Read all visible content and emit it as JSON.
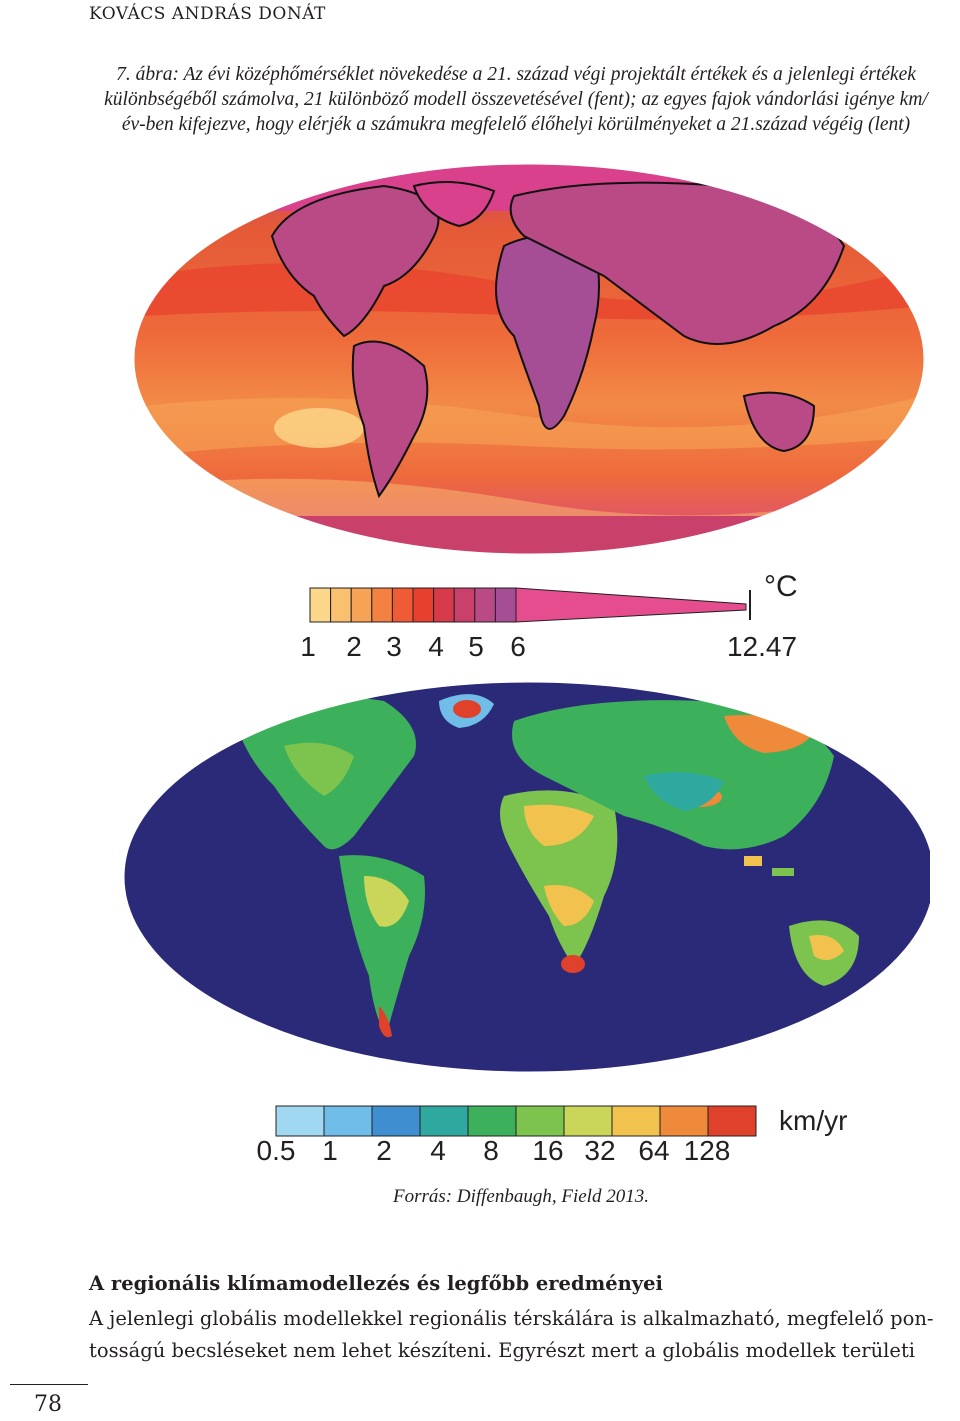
{
  "header": {
    "author": "KOVÁCS ANDRÁS DONÁT"
  },
  "figure": {
    "caption_lines": [
      "7. ábra: Az évi középhőmérséklet növekedése a 21. század végi projektált értékek és a jelenlegi értékek",
      "különbségéből számolva, 21 különböző modell összevetésével (fent); az egyes fajok vándorlási igénye km/",
      "év-ben kifejezve, hogy elérjék a számukra megfelelő élőhelyi körülményeket a 21.század végéig (lent)"
    ],
    "top_map": {
      "unit": "°C",
      "scale_labels": [
        "1",
        "2",
        "3",
        "4",
        "5",
        "6"
      ],
      "max_label": "12.47",
      "colors": [
        "#fbd78a",
        "#f9c070",
        "#f6a355",
        "#f38142",
        "#ef5b35",
        "#e8402e",
        "#d63a4b",
        "#c9406a",
        "#b94a86",
        "#a64e95"
      ],
      "tail_color": "#e54d8e"
    },
    "bottom_map": {
      "unit": "km/yr",
      "scale_labels": [
        "0.5",
        "1",
        "2",
        "4",
        "8",
        "16",
        "32",
        "64",
        "128"
      ],
      "colors": [
        "#9fd8f0",
        "#6fbde8",
        "#3f8fd0",
        "#2fa8a0",
        "#3cb05a",
        "#7cc44e",
        "#c9d65a",
        "#f1c34e",
        "#ee8a3a",
        "#e0412a"
      ],
      "ocean_color": "#2b2a78"
    },
    "source": "Forrás: Diffenbaugh, Field 2013."
  },
  "section": {
    "heading": "A regionális klímamodellezés és legfőbb eredményei",
    "body_lines": [
      "A jelenlegi globális modellekkel regionális térskálára is alkalmazható, megfelelő pon-",
      "tosságú becsléseket nem lehet készíteni. Egyrészt mert a globális modellek területi"
    ]
  },
  "page": {
    "number": "78"
  }
}
